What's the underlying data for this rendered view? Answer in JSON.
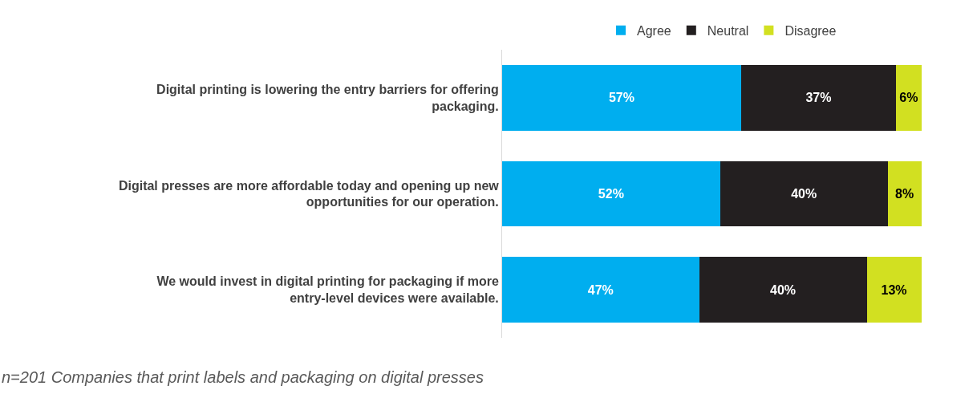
{
  "chart_data": {
    "type": "bar",
    "orientation": "horizontal",
    "stacked": true,
    "legend": "top",
    "tick_labels": "y",
    "categories": [
      "Digital printing is lowering the entry barriers for offering packaging.",
      "Digital presses are more affordable today and opening up new opportunities for our operation.",
      "We would invest in digital printing for packaging if more entry-level devices were available."
    ],
    "series": [
      {
        "name": "Agree",
        "color": "#00aeef",
        "values": [
          57,
          52,
          47
        ],
        "value_labels": [
          "57%",
          "52%",
          "47%"
        ]
      },
      {
        "name": "Neutral",
        "color": "#231f20",
        "values": [
          37,
          40,
          40
        ],
        "value_labels": [
          "37%",
          "40%",
          "40%"
        ]
      },
      {
        "name": "Disagree",
        "color": "#d2e021",
        "values": [
          6,
          8,
          13
        ],
        "value_labels": [
          "6%",
          "8%",
          "13%"
        ]
      }
    ],
    "annotations": [
      "n=201 Companies that print labels and packaging on digital presses"
    ]
  }
}
